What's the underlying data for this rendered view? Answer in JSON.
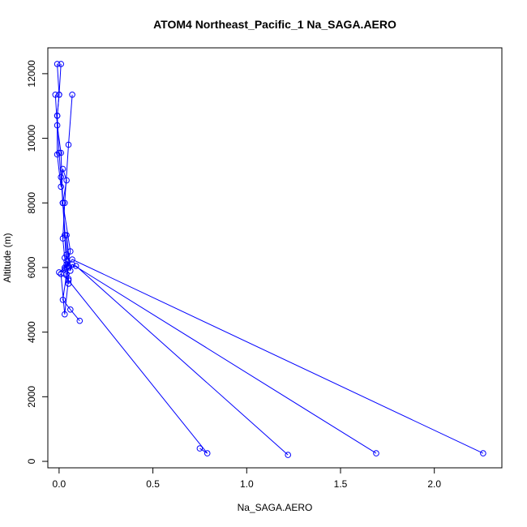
{
  "colors": {
    "series": "#0000ff",
    "axis": "#000000",
    "background": "#ffffff"
  },
  "chart_data": {
    "type": "line",
    "title": "ATOM4 Northeast_Pacific_1 Na_SAGA.AERO",
    "xlabel": "Na_SAGA.AERO",
    "ylabel": "Altitude (m)",
    "xlim": [
      -0.06,
      2.36
    ],
    "ylim": [
      -200,
      12800
    ],
    "xticks": [
      0,
      0.5,
      1,
      1.5,
      2
    ],
    "xtick_labels": [
      "0.0",
      "0.5",
      "1.0",
      "1.5",
      "2.0"
    ],
    "yticks": [
      0,
      2000,
      4000,
      6000,
      8000,
      10000,
      12000
    ],
    "ytick_labels": [
      "0",
      "2000",
      "4000",
      "6000",
      "8000",
      "10000",
      "12000"
    ],
    "grid": false,
    "legend": "none",
    "markers": "open-circle",
    "series": [
      {
        "x": [
          -0.01,
          0.0,
          -0.01,
          0.0,
          0.01,
          0.02,
          0.03,
          0.04,
          0.03,
          0.05,
          0.04,
          0.05,
          0.03,
          0.01,
          0.05,
          0.79,
          0.75
        ],
        "y": [
          12300,
          11350,
          10700,
          9550,
          8800,
          8000,
          7000,
          6100,
          5950,
          5500,
          6200,
          5650,
          4550,
          5800,
          5600,
          250,
          400
        ]
      },
      {
        "x": [
          0.01,
          0.0,
          -0.01,
          -0.01,
          0.01,
          0.02,
          0.04,
          0.02,
          0.04,
          0.03,
          0.0,
          0.09,
          1.22
        ],
        "y": [
          12300,
          11350,
          10700,
          9500,
          8500,
          9050,
          8700,
          8000,
          6400,
          6000,
          5850,
          6050,
          200
        ]
      },
      {
        "x": [
          0.07,
          0.05,
          0.03,
          0.02,
          0.03,
          0.05,
          0.04,
          0.06,
          0.07,
          1.69
        ],
        "y": [
          11350,
          9800,
          8000,
          6900,
          6300,
          6050,
          7000,
          5900,
          6100,
          250
        ]
      },
      {
        "x": [
          -0.02,
          -0.01,
          0.01,
          0.02,
          0.06,
          0.04,
          0.07,
          2.26
        ],
        "y": [
          11350,
          10400,
          9550,
          8000,
          6500,
          6000,
          6250,
          250
        ]
      },
      {
        "x": [
          0.05,
          0.04,
          0.02,
          0.06,
          0.11
        ],
        "y": [
          6000,
          5800,
          5000,
          4700,
          4350
        ]
      }
    ]
  }
}
